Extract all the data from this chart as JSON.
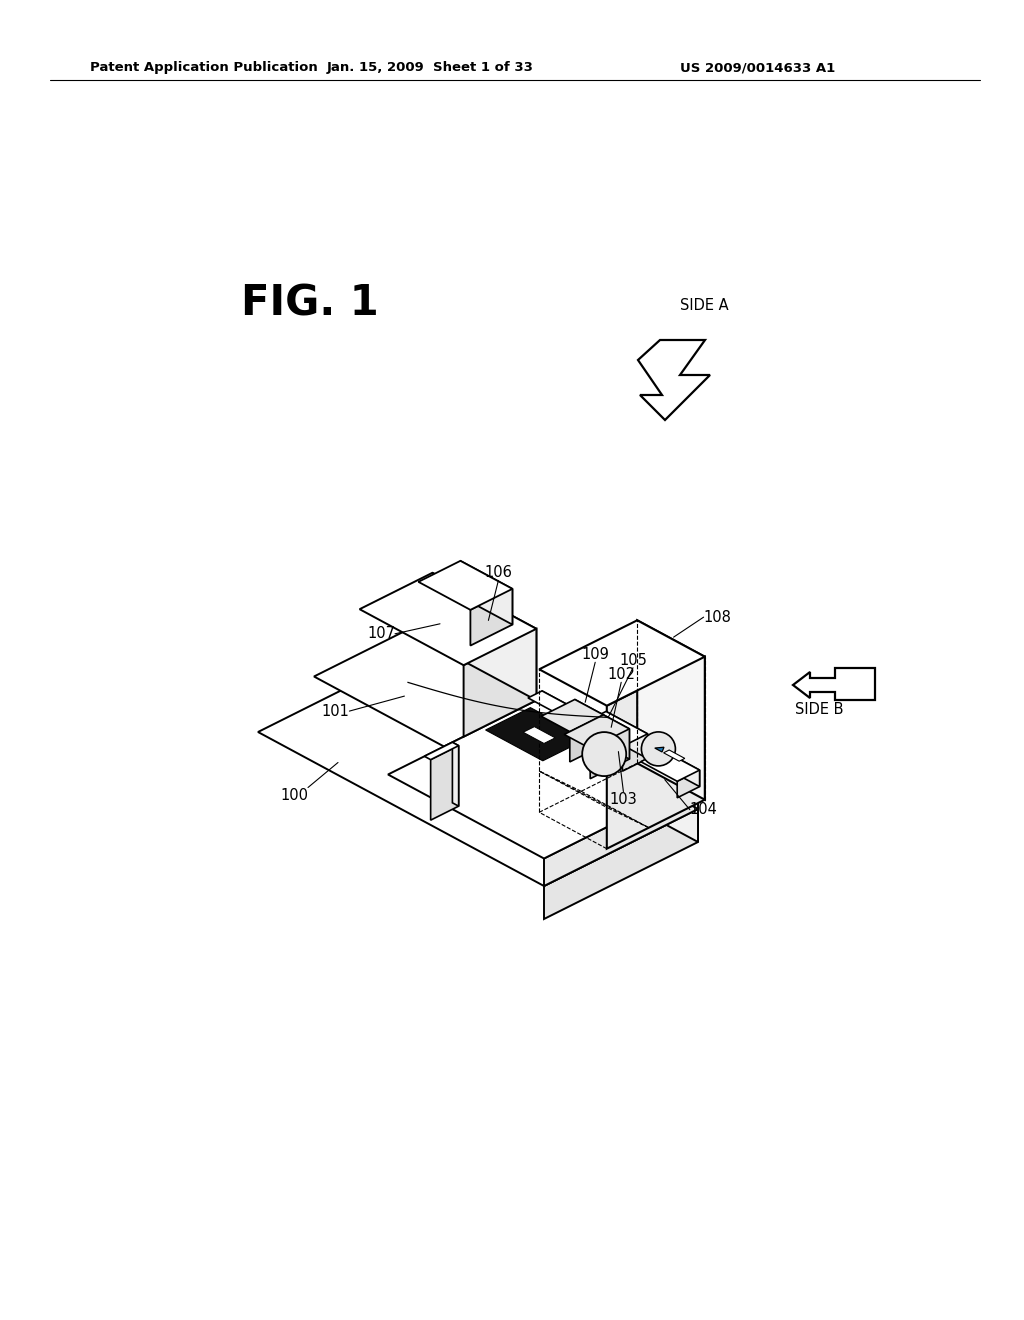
{
  "header_left": "Patent Application Publication",
  "header_mid": "Jan. 15, 2009  Sheet 1 of 33",
  "header_right": "US 2009/0014633 A1",
  "fig_title": "FIG. 1",
  "side_a_label": "SIDE A",
  "side_b_label": "SIDE B",
  "bg_color": "#ffffff",
  "line_color": "#000000"
}
